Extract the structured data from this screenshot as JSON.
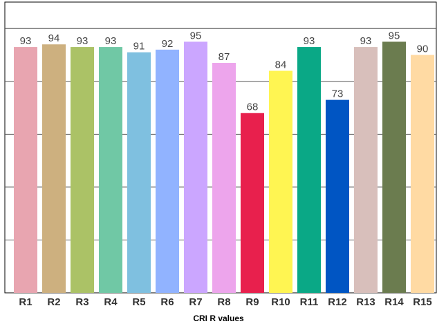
{
  "chart_data": {
    "type": "bar",
    "categories": [
      "R1",
      "R2",
      "R3",
      "R4",
      "R5",
      "R6",
      "R7",
      "R8",
      "R9",
      "R10",
      "R11",
      "R12",
      "R13",
      "R14",
      "R15"
    ],
    "values": [
      93,
      94,
      93,
      93,
      91,
      92,
      95,
      87,
      68,
      84,
      93,
      73,
      93,
      95,
      90
    ],
    "colors": [
      "#e8a5b0",
      "#cdb07f",
      "#abc266",
      "#70c8a5",
      "#7fc0e0",
      "#91b3ff",
      "#cba6ff",
      "#eda5ec",
      "#e8204d",
      "#fff552",
      "#0aa886",
      "#0055c3",
      "#d8bfbb",
      "#6b7c4f",
      "#ffdaa3"
    ],
    "title": "",
    "xlabel": "CRI R values",
    "ylabel": "",
    "ylim": [
      0,
      110
    ],
    "grid": true,
    "legend": "none"
  }
}
